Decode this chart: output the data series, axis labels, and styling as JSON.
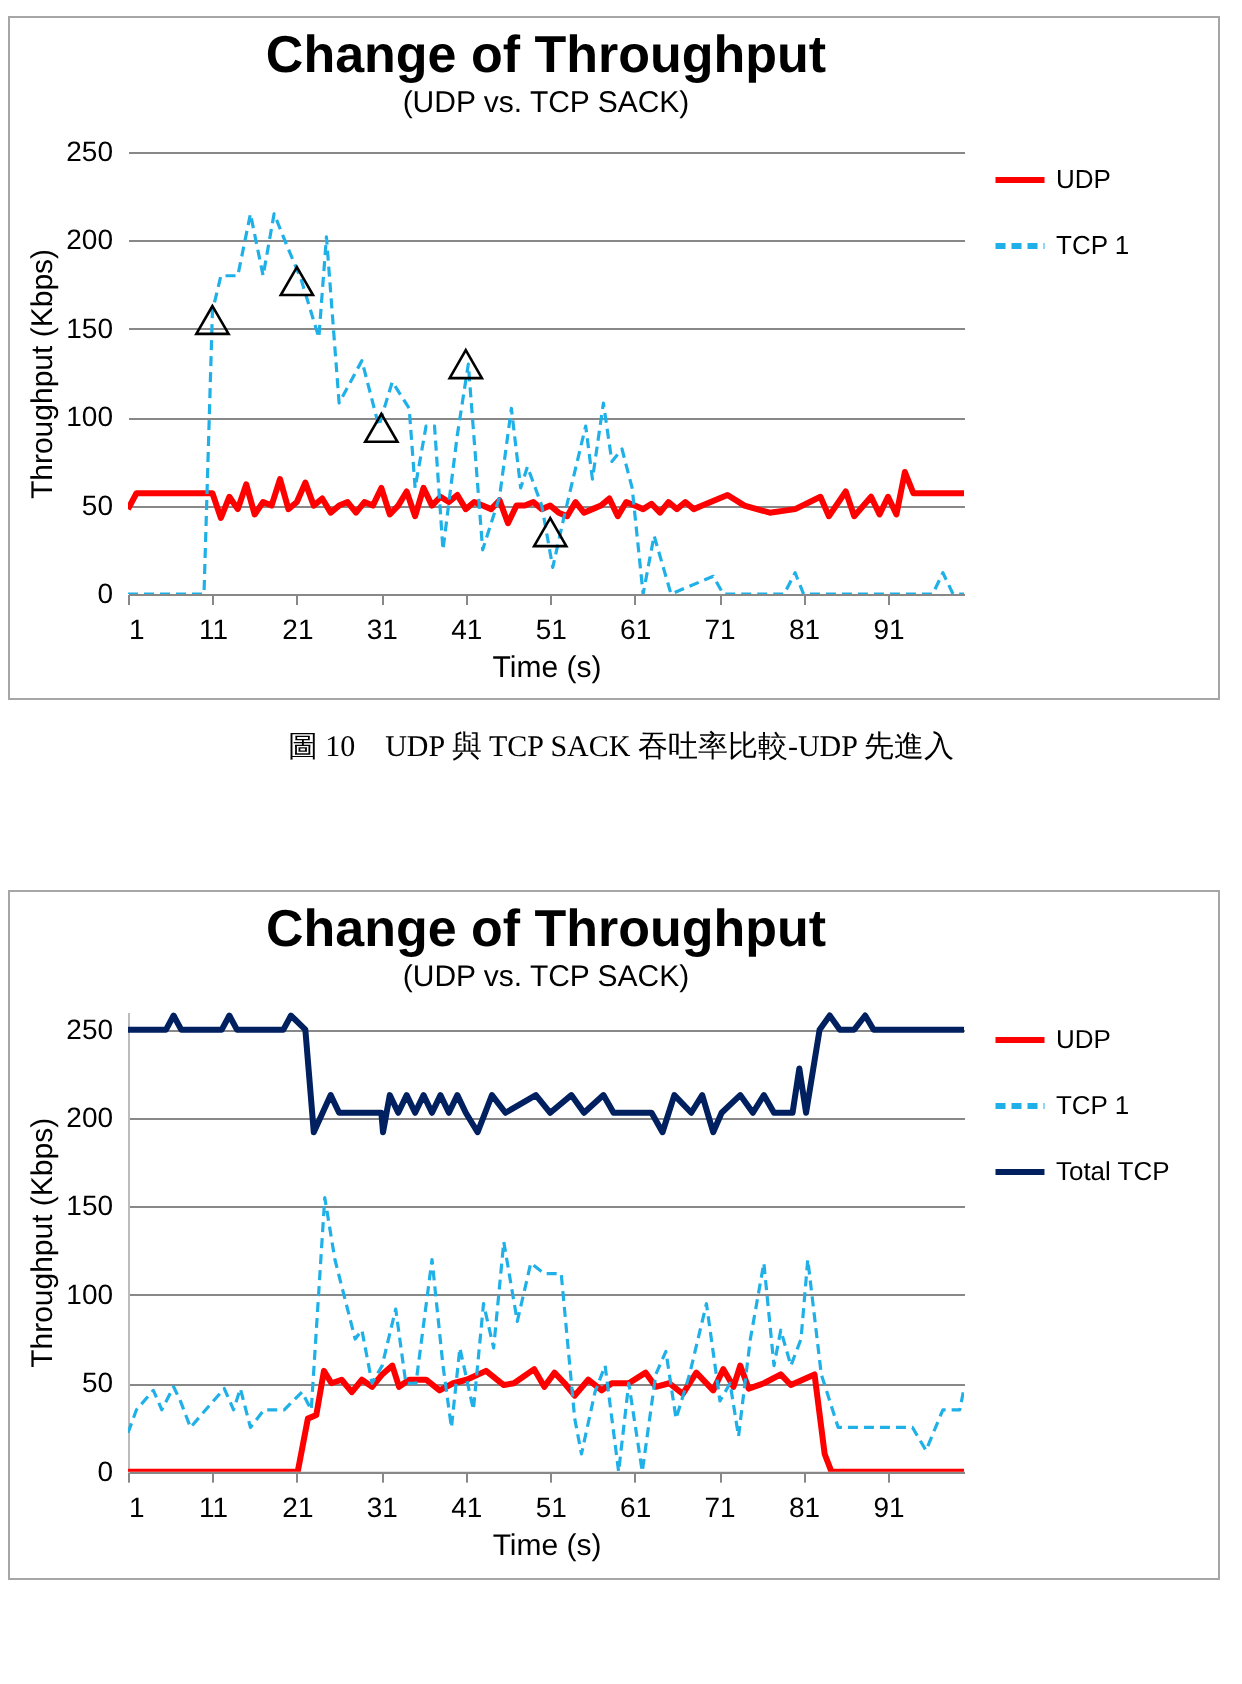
{
  "chart_data": [
    {
      "type": "line",
      "title": "Change of Throughput",
      "subtitle": "(UDP vs. TCP SACK)",
      "xlabel": "Time (s)",
      "ylabel": "Throughput (Kbps)",
      "xlim": [
        1,
        100
      ],
      "xticks": [
        1,
        11,
        21,
        31,
        41,
        51,
        61,
        71,
        81,
        91
      ],
      "ylim": [
        0,
        250
      ],
      "yticks": [
        0,
        50,
        100,
        150,
        200,
        250
      ],
      "grid": "y",
      "legend": "right",
      "annotations": [
        "圖 10　UDP 與 TCP SACK 吞吐率比較-UDP 先進入"
      ],
      "series": [
        {
          "name": "UDP",
          "color": "#ff0000",
          "line_style": "solid",
          "x": [
            1,
            2,
            11,
            12,
            13,
            14,
            15,
            16,
            17,
            18,
            19,
            20,
            21,
            22,
            23,
            24,
            25,
            26,
            27,
            28,
            29,
            30,
            31,
            32,
            33,
            34,
            35,
            36,
            37,
            38,
            39,
            40,
            41,
            42,
            43,
            44,
            45,
            46,
            47,
            48,
            49,
            50,
            51,
            52,
            53,
            54,
            55,
            56,
            57,
            58,
            59,
            60,
            61,
            62,
            63,
            64,
            65,
            66,
            67,
            68,
            69,
            70,
            72,
            74,
            77,
            80,
            83,
            84,
            86,
            87,
            89,
            90,
            91,
            92,
            93,
            94,
            100
          ],
          "values": [
            48,
            57,
            57,
            43,
            55,
            48,
            62,
            45,
            52,
            50,
            65,
            48,
            52,
            63,
            50,
            54,
            46,
            50,
            52,
            46,
            52,
            50,
            60,
            45,
            50,
            58,
            44,
            60,
            50,
            55,
            52,
            56,
            48,
            52,
            50,
            48,
            53,
            40,
            50,
            50,
            52,
            48,
            50,
            46,
            44,
            52,
            46,
            48,
            50,
            54,
            44,
            52,
            50,
            48,
            51,
            46,
            52,
            48,
            52,
            48,
            50,
            52,
            56,
            50,
            46,
            48,
            55,
            44,
            58,
            44,
            55,
            45,
            55,
            45,
            69,
            57,
            57
          ]
        },
        {
          "name": "TCP 1",
          "color": "#1fb0e8",
          "line_style": "dashed",
          "x": [
            1,
            10,
            11,
            12,
            14,
            15.5,
            17,
            18.3,
            20,
            21.5,
            23.6,
            24.5,
            26,
            28.7,
            30.7,
            32.3,
            34.3,
            35,
            36.3,
            37.3,
            38.3,
            40,
            41.3,
            43,
            45,
            46.4,
            47.5,
            48.3,
            50,
            51.3,
            52.7,
            55.2,
            56,
            57.3,
            58.3,
            59.5,
            60.7,
            62,
            63.3,
            65.3,
            70.3,
            71.5,
            78.7,
            80,
            81,
            96.3,
            97.5,
            98.7,
            100
          ],
          "values": [
            0,
            0,
            160,
            180,
            180,
            215,
            180,
            215,
            195,
            178,
            145,
            202,
            108,
            132,
            95,
            120,
            105,
            60,
            95,
            95,
            25,
            90,
            130,
            25,
            55,
            105,
            60,
            72,
            50,
            15,
            45,
            95,
            65,
            108,
            75,
            82,
            60,
            0,
            33,
            0,
            10,
            0,
            0,
            12,
            0,
            0,
            12,
            0,
            0
          ]
        },
        {
          "type": "scatter",
          "marker": "triangle",
          "color": "#000000",
          "x": [
            11,
            21,
            31,
            41,
            51
          ],
          "values": [
            155,
            177,
            94,
            130,
            35
          ]
        }
      ]
    },
    {
      "type": "line",
      "title": "Change of Throughput",
      "subtitle": "(UDP vs. TCP SACK)",
      "xlabel": "Time (s)",
      "ylabel": "Throughput (Kbps)",
      "xlim": [
        1,
        100
      ],
      "xticks": [
        1,
        11,
        21,
        31,
        41,
        51,
        61,
        71,
        81,
        91
      ],
      "ylim": [
        0,
        260
      ],
      "yticks": [
        0,
        50,
        100,
        150,
        200,
        250
      ],
      "grid": "y",
      "legend": "right",
      "series": [
        {
          "name": "UDP",
          "color": "#ff0000",
          "line_style": "solid",
          "x": [
            1,
            21.1,
            22.3,
            23.3,
            24.2,
            25.1,
            26.3,
            27.5,
            28.7,
            29.9,
            31.1,
            32.3,
            33.1,
            34.3,
            36.3,
            37.9,
            39.5,
            41.1,
            43.4,
            45.5,
            46.7,
            49.1,
            50.3,
            51.5,
            52.7,
            53.9,
            55.5,
            57.1,
            58.3,
            60.3,
            62.3,
            63.5,
            65.1,
            66.7,
            68.3,
            70.3,
            71.5,
            72.7,
            73.5,
            74.5,
            76.3,
            78.3,
            79.5,
            82.3,
            83.5,
            84.3,
            100
          ],
          "values": [
            0,
            0,
            30,
            32,
            57,
            50,
            52,
            45,
            52,
            48,
            55,
            60,
            48,
            52,
            52,
            46,
            50,
            52,
            57,
            49,
            50,
            58,
            48,
            56,
            50,
            43,
            52,
            46,
            50,
            50,
            56,
            48,
            50,
            44,
            56,
            46,
            58,
            48,
            60,
            47,
            50,
            55,
            49,
            55,
            10,
            0,
            0
          ]
        },
        {
          "name": "TCP 1",
          "color": "#1fb0e8",
          "line_style": "dashed",
          "x": [
            1,
            2,
            4,
            5,
            6.4,
            7.2,
            8.4,
            10.2,
            12.4,
            13.5,
            14.3,
            15.5,
            17.1,
            19.5,
            21.6,
            22.7,
            24.3,
            25.5,
            27.9,
            28.7,
            29.9,
            31.1,
            32.7,
            33.9,
            35.1,
            37,
            38.3,
            39.3,
            40.3,
            41.9,
            43.1,
            44.3,
            45.5,
            47.1,
            48.7,
            50.3,
            52.3,
            53.9,
            54.7,
            56.3,
            57.5,
            59.1,
            60.3,
            61.9,
            63.5,
            64.7,
            65.9,
            67.5,
            69.5,
            71.1,
            72.3,
            73.3,
            74.7,
            76.3,
            77.5,
            78.3,
            79.5,
            80.7,
            81.5,
            83.1,
            85.1,
            93.9,
            95.5,
            97.5,
            99.5,
            100
          ],
          "values": [
            22,
            35,
            46,
            35,
            48,
            40,
            25,
            35,
            47,
            35,
            47,
            25,
            35,
            35,
            45,
            35,
            155,
            120,
            75,
            80,
            50,
            60,
            92,
            50,
            50,
            120,
            60,
            25,
            70,
            35,
            95,
            70,
            130,
            85,
            118,
            112,
            112,
            30,
            10,
            45,
            60,
            0,
            50,
            0,
            55,
            68,
            30,
            55,
            95,
            40,
            50,
            20,
            75,
            118,
            60,
            80,
            60,
            75,
            120,
            55,
            25,
            25,
            12,
            35,
            35,
            47
          ]
        },
        {
          "name": "Total TCP",
          "color": "#002060",
          "line_style": "solid",
          "x": [
            1,
            5.5,
            6.4,
            7.3,
            12.1,
            13,
            13.9,
            19.4,
            20.3,
            22,
            23,
            25,
            26,
            31,
            31.2,
            32,
            33,
            34,
            35,
            36,
            37,
            38,
            39,
            40,
            41,
            42.4,
            44.1,
            45.7,
            49.3,
            51,
            53.5,
            55,
            57.3,
            58.5,
            63,
            64.3,
            65.7,
            67.7,
            69,
            70.3,
            71.3,
            73.5,
            75,
            76.3,
            77.5,
            79.7,
            80.5,
            81.3,
            82.9,
            84.1,
            85.3,
            87,
            88.3,
            89.3,
            100
          ],
          "values": [
            250,
            250,
            258,
            250,
            250,
            258,
            250,
            250,
            258,
            250,
            192,
            213,
            203,
            203,
            192,
            213,
            203,
            213,
            203,
            213,
            203,
            213,
            203,
            213,
            203,
            192,
            213,
            203,
            213,
            203,
            213,
            203,
            213,
            203,
            203,
            192,
            213,
            203,
            213,
            192,
            203,
            213,
            203,
            213,
            203,
            203,
            228,
            203,
            250,
            258,
            250,
            250,
            258,
            250,
            250
          ]
        }
      ]
    }
  ]
}
